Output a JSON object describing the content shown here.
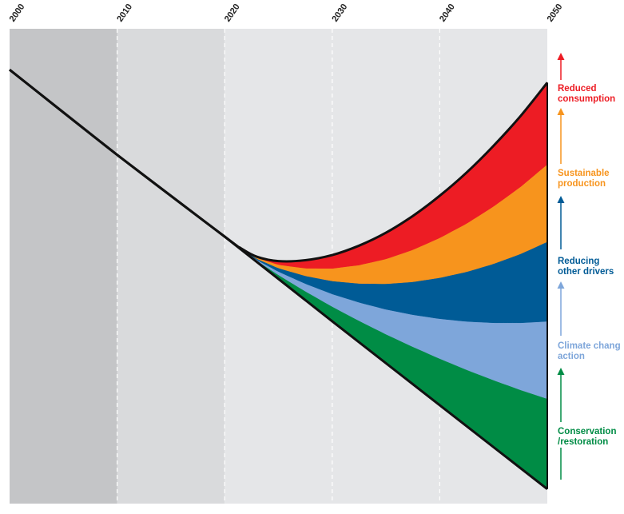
{
  "chart_data": {
    "type": "area",
    "title": "",
    "xlabel": "",
    "ylabel": "",
    "xlim": [
      2000,
      2050
    ],
    "ylim": [
      0,
      100
    ],
    "x_ticks": [
      "2000",
      "2010",
      "2020",
      "2030",
      "2040",
      "2050"
    ],
    "shaded_periods": [
      {
        "from": 2000,
        "to": 2010,
        "color": "#c4c5c7"
      },
      {
        "from": 2010,
        "to": 2020,
        "color": "#d9dadc"
      },
      {
        "from": 2020,
        "to": 2050,
        "color": "#e5e6e8"
      }
    ],
    "baseline": {
      "name": "",
      "color": "#111111",
      "x": [
        2000,
        2010,
        2020,
        2030,
        2040,
        2050
      ],
      "y": [
        95.5,
        75.7,
        56.7,
        37.0,
        17.5,
        -2.0
      ]
    },
    "bend_the_curve": {
      "name": "",
      "color": "#111111",
      "x": [
        2000,
        2010,
        2020,
        2021.5,
        2023,
        2025,
        2027.5,
        2030,
        2032.5,
        2035,
        2037.5,
        2040,
        2042.5,
        2045,
        2047.5,
        2050
      ],
      "y": [
        95.5,
        75.7,
        56.7,
        54.0,
        52.0,
        51.0,
        51.2,
        52.4,
        54.6,
        57.6,
        61.5,
        66.2,
        71.6,
        77.8,
        84.7,
        92.5
      ]
    },
    "series": [
      {
        "name": "Conservation /restoration",
        "color": "#008c45",
        "values_2050_top": 19.0,
        "values_2050_bottom": -2.0
      },
      {
        "name": "Climate chang action",
        "color": "#7ea6da",
        "values_2050_top": 37.0,
        "values_2050_bottom": 19.0
      },
      {
        "name": "Reducing other drivers",
        "color": "#005b96",
        "values_2050_top": 55.5,
        "values_2050_bottom": 37.0
      },
      {
        "name": "Sustainable production",
        "color": "#f7941d",
        "values_2050_top": 73.5,
        "values_2050_bottom": 55.5
      },
      {
        "name": "Reduced consumption",
        "color": "#ed1c24",
        "values_2050_top": 92.5,
        "values_2050_bottom": 73.5
      }
    ],
    "grid": true,
    "legend": "right"
  },
  "labels": [
    {
      "line1": "Reduced",
      "line2": "consumption",
      "color": "#ed1c24"
    },
    {
      "line1": "Sustainable",
      "line2": "production",
      "color": "#f7941d"
    },
    {
      "line1": "Reducing",
      "line2": "other drivers",
      "color": "#005b96"
    },
    {
      "line1": "Climate chang",
      "line2": "action",
      "color": "#7ea6da"
    },
    {
      "line1": "Conservation",
      "line2": "/restoration",
      "color": "#008c45"
    }
  ]
}
